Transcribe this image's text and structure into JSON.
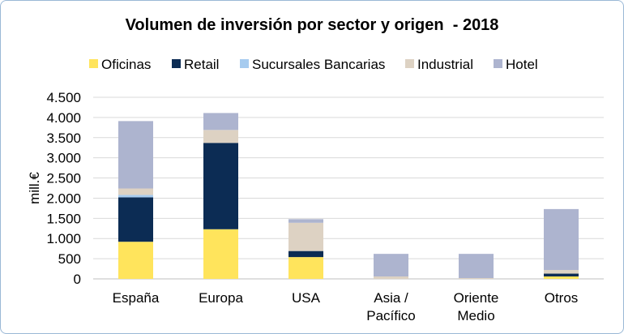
{
  "chart_data": {
    "type": "bar",
    "stacked": true,
    "title": "Volumen de inversión por sector y origen  - 2018",
    "xlabel": "",
    "ylabel": "mill.€",
    "ylim": [
      0,
      4500
    ],
    "yticks": [
      0,
      500,
      1000,
      1500,
      2000,
      2500,
      3000,
      3500,
      4000,
      4500
    ],
    "ytick_labels": [
      "0",
      "500",
      "1.000",
      "1.500",
      "2.000",
      "2.500",
      "3.000",
      "3.500",
      "4.000",
      "4.500"
    ],
    "grid": true,
    "legend_position": "top",
    "categories": [
      [
        "España"
      ],
      [
        "Europa"
      ],
      [
        "USA"
      ],
      [
        "Asia /",
        "Pacífico"
      ],
      [
        "Oriente",
        "Medio"
      ],
      [
        "Otros"
      ]
    ],
    "series": [
      {
        "name": "Oficinas",
        "color": "#ffe45c",
        "values": [
          920,
          1230,
          540,
          0,
          0,
          60
        ]
      },
      {
        "name": "Retail",
        "color": "#0c2c54",
        "values": [
          1100,
          2140,
          150,
          0,
          0,
          70
        ]
      },
      {
        "name": "Sucursales Bancarias",
        "color": "#a6cbef",
        "values": [
          60,
          0,
          0,
          0,
          0,
          0
        ]
      },
      {
        "name": "Industrial",
        "color": "#ddd2c3",
        "values": [
          160,
          320,
          700,
          60,
          20,
          90
        ]
      },
      {
        "name": "Hotel",
        "color": "#adb4cf",
        "values": [
          1670,
          420,
          90,
          560,
          600,
          1510
        ]
      }
    ]
  }
}
